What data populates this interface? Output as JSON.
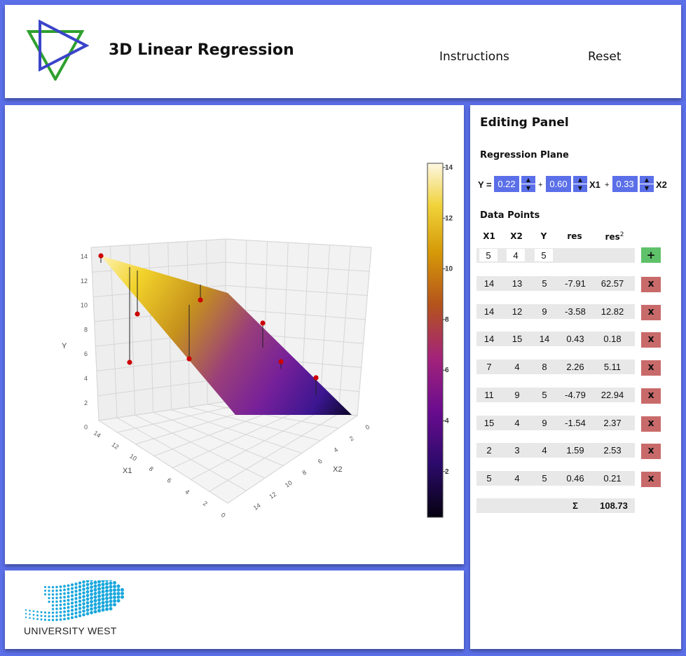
{
  "header": {
    "title": "3D Linear Regression",
    "nav": {
      "instructions": "Instructions",
      "reset": "Reset"
    }
  },
  "plot": {
    "axes": {
      "x1_label": "X1",
      "x2_label": "X2",
      "y_label": "Y",
      "y_ticks": [
        "14",
        "12",
        "10",
        "8",
        "6",
        "4",
        "2",
        "0"
      ],
      "x1_ticks": [
        "14",
        "12",
        "10",
        "8",
        "6",
        "4",
        "2",
        "0"
      ],
      "x2_ticks": [
        "0",
        "2",
        "4",
        "6",
        "8",
        "10",
        "12",
        "14"
      ]
    },
    "colorbar": {
      "ticks": [
        "14",
        "12",
        "10",
        "8",
        "6",
        "4",
        "2"
      ],
      "colorscale": "plasma"
    }
  },
  "editor": {
    "title": "Editing Panel",
    "regression_heading": "Regression Plane",
    "equation": {
      "y_prefix": "Y =",
      "b0": "0.22",
      "plus1": "+",
      "b1": "0.60",
      "x1": "X1",
      "plus2": "+",
      "b2": "0.33",
      "x2": "X2",
      "spin_up": "▲",
      "spin_down": "▼"
    },
    "data_heading": "Data Points",
    "columns": {
      "x1": "X1",
      "x2": "X2",
      "y": "Y",
      "res": "res",
      "res2": "res",
      "res2_sup": "2"
    },
    "new_point": {
      "x1": "5",
      "x2": "4",
      "y": "5",
      "add_label": "+"
    },
    "rows": [
      {
        "x1": "14",
        "x2": "13",
        "y": "5",
        "res": "-7.91",
        "res2": "62.57"
      },
      {
        "x1": "14",
        "x2": "12",
        "y": "9",
        "res": "-3.58",
        "res2": "12.82"
      },
      {
        "x1": "14",
        "x2": "15",
        "y": "14",
        "res": "0.43",
        "res2": "0.18"
      },
      {
        "x1": "7",
        "x2": "4",
        "y": "8",
        "res": "2.26",
        "res2": "5.11"
      },
      {
        "x1": "11",
        "x2": "9",
        "y": "5",
        "res": "-4.79",
        "res2": "22.94"
      },
      {
        "x1": "15",
        "x2": "4",
        "y": "9",
        "res": "-1.54",
        "res2": "2.37"
      },
      {
        "x1": "2",
        "x2": "3",
        "y": "4",
        "res": "1.59",
        "res2": "2.53"
      },
      {
        "x1": "5",
        "x2": "4",
        "y": "5",
        "res": "0.46",
        "res2": "0.21"
      }
    ],
    "delete_label": "x",
    "sum": {
      "symbol": "Σ",
      "value": "108.73"
    }
  },
  "footer": {
    "logo_text": "UNIVERSITY WEST"
  },
  "colors": {
    "background": "#5b6fe8",
    "accent": "#5b6fe8",
    "delete": "#c96a6a",
    "add": "#5fc16a",
    "logo_green": "#2ea02e",
    "logo_blue": "#3a44c9",
    "university_blue": "#19a7dc",
    "data_point": "#cc0000"
  }
}
